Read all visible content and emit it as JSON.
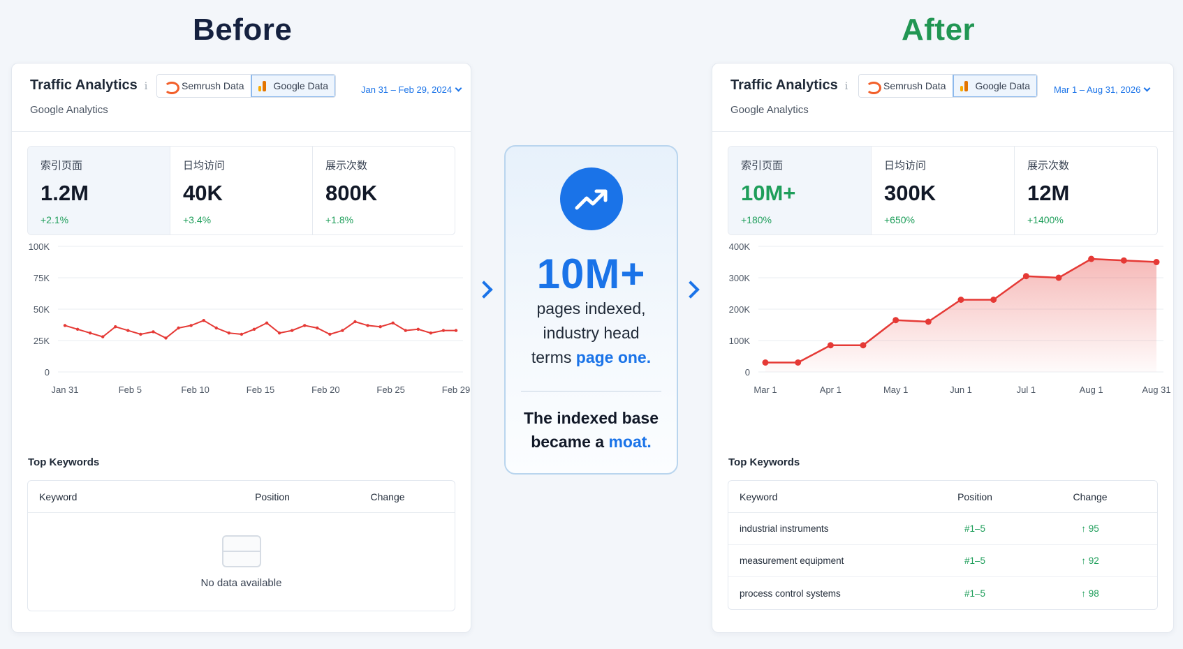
{
  "headings": {
    "before": "Before",
    "after": "After"
  },
  "before": {
    "title": "Traffic Analytics",
    "info_icon": "i",
    "subtitle": "Google Analytics",
    "tabs": {
      "semrush": "Semrush Data",
      "google": "Google Data"
    },
    "date_range": "Jan 31 – Feb 29, 2024",
    "stats": [
      {
        "label": "索引页面",
        "value": "1.2M",
        "delta": "+2.1%"
      },
      {
        "label": "日均访问",
        "value": "40K",
        "delta": "+3.4%"
      },
      {
        "label": "展示次数",
        "value": "800K",
        "delta": "+1.8%"
      }
    ],
    "keywords": {
      "title": "Top Keywords",
      "columns": {
        "keyword": "Keyword",
        "position": "Position",
        "change": "Change"
      },
      "empty_text": "No data available",
      "rows": []
    }
  },
  "after": {
    "title": "Traffic Analytics",
    "info_icon": "i",
    "subtitle": "Google Analytics",
    "tabs": {
      "semrush": "Semrush Data",
      "google": "Google Data"
    },
    "date_range": "Mar 1 – Aug 31, 2026",
    "stats": [
      {
        "label": "索引页面",
        "value": "10M+",
        "delta": "+180%"
      },
      {
        "label": "日均访问",
        "value": "300K",
        "delta": "+650%"
      },
      {
        "label": "展示次数",
        "value": "12M",
        "delta": "+1400%"
      }
    ],
    "keywords": {
      "title": "Top Keywords",
      "columns": {
        "keyword": "Keyword",
        "position": "Position",
        "change": "Change"
      },
      "rows": [
        {
          "keyword": "industrial instruments",
          "position": "#1–5",
          "change": "↑ 95"
        },
        {
          "keyword": "measurement equipment",
          "position": "#1–5",
          "change": "↑ 92"
        },
        {
          "keyword": "process control systems",
          "position": "#1–5",
          "change": "↑ 98"
        }
      ]
    }
  },
  "center": {
    "big_number": "10M+",
    "line1": "pages indexed,",
    "line2": "industry head",
    "line3_pre": "terms ",
    "line3_accent": "page one.",
    "foot_line1": "The indexed base",
    "foot_pre": "became a ",
    "foot_accent": "moat."
  },
  "colors": {
    "accent": "#1a73e8",
    "growth": "#1e9e5a",
    "line": "#e53935"
  },
  "chart_data": [
    {
      "type": "line",
      "ylim": [
        0,
        100000
      ],
      "yticks": [
        "0",
        "25K",
        "50K",
        "75K",
        "100K"
      ],
      "xticks": [
        "Jan 31",
        "Feb 5",
        "Feb 10",
        "Feb 15",
        "Feb 20",
        "Feb 25",
        "Feb 29"
      ],
      "series": [
        {
          "values": [
            37000,
            34000,
            31000,
            28000,
            36000,
            33000,
            30000,
            32000,
            27000,
            35000,
            37000,
            41000,
            35000,
            31000,
            30000,
            34000,
            39000,
            31000,
            33000,
            37000,
            35000,
            30000,
            33000,
            40000,
            37000,
            36000,
            39000,
            33000,
            34000,
            31000,
            33000,
            33000
          ]
        }
      ],
      "grid": true,
      "area": false
    },
    {
      "type": "area",
      "ylim": [
        0,
        400000
      ],
      "yticks": [
        "0",
        "100K",
        "200K",
        "300K",
        "400K"
      ],
      "xticks": [
        "Mar 1",
        "Apr 1",
        "May 1",
        "Jun 1",
        "Jul 1",
        "Aug 1",
        "Aug 31"
      ],
      "series": [
        {
          "values": [
            30000,
            30000,
            85000,
            85000,
            165000,
            160000,
            230000,
            230000,
            305000,
            300000,
            360000,
            355000,
            350000
          ]
        }
      ],
      "grid": true,
      "area": true
    }
  ]
}
